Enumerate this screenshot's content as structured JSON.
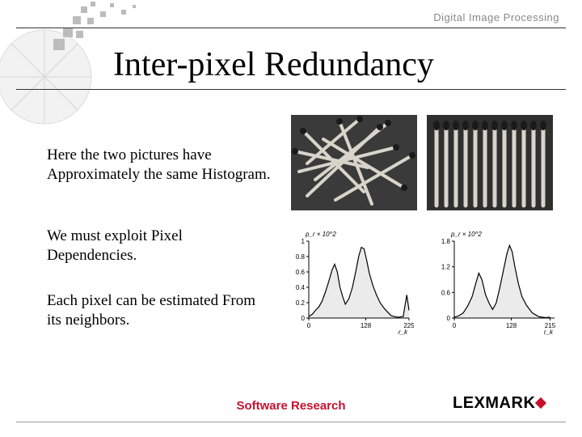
{
  "header": {
    "label": "Digital Image Processing"
  },
  "title": "Inter-pixel Redundancy",
  "paragraphs": {
    "p1": "Here the two pictures have Approximately the same Histogram.",
    "p2": "We must exploit Pixel Dependencies.",
    "p3": "Each pixel can be estimated From its neighbors."
  },
  "footer": {
    "center": "Software Research",
    "logo_text": "LEXMARK",
    "accent_color": "#c8102e"
  },
  "images": {
    "left": {
      "type": "photo",
      "description": "scattered-matches",
      "bg": "#3a3a3a",
      "stick_color": "#d8d4ca",
      "head_color": "#1a1a1a"
    },
    "right": {
      "type": "photo",
      "description": "aligned-matches",
      "bg": "#2f2f2f",
      "stick_color": "#d8d4ca",
      "head_color": "#1a1a1a",
      "count": 12
    }
  },
  "charts": {
    "left": {
      "type": "line",
      "ylabel": "p_r × 10^2",
      "ylim": [
        0,
        1.0
      ],
      "yticks": [
        0,
        0.2,
        0.4,
        0.6,
        0.8,
        1.0
      ],
      "xlim": [
        0,
        225
      ],
      "xticks": [
        0,
        128,
        225
      ],
      "xvar": "r_k",
      "line_color": "#000000",
      "background_color": "#ffffff",
      "data": [
        [
          0,
          0.02
        ],
        [
          8,
          0.05
        ],
        [
          15,
          0.1
        ],
        [
          22,
          0.14
        ],
        [
          30,
          0.22
        ],
        [
          38,
          0.35
        ],
        [
          45,
          0.48
        ],
        [
          52,
          0.62
        ],
        [
          58,
          0.7
        ],
        [
          64,
          0.6
        ],
        [
          70,
          0.4
        ],
        [
          76,
          0.28
        ],
        [
          82,
          0.18
        ],
        [
          90,
          0.25
        ],
        [
          98,
          0.4
        ],
        [
          106,
          0.62
        ],
        [
          112,
          0.8
        ],
        [
          118,
          0.92
        ],
        [
          124,
          0.9
        ],
        [
          130,
          0.75
        ],
        [
          136,
          0.58
        ],
        [
          144,
          0.42
        ],
        [
          152,
          0.3
        ],
        [
          160,
          0.2
        ],
        [
          170,
          0.12
        ],
        [
          185,
          0.03
        ],
        [
          200,
          0.01
        ],
        [
          212,
          0.02
        ],
        [
          220,
          0.3
        ],
        [
          225,
          0.1
        ]
      ]
    },
    "right": {
      "type": "line",
      "ylabel": "p_r × 10^2",
      "ylim": [
        0,
        1.8
      ],
      "yticks": [
        0,
        0.6,
        1.2,
        1.8
      ],
      "xlim": [
        0,
        225
      ],
      "xticks": [
        0,
        128,
        215
      ],
      "xvar": "r_k",
      "line_color": "#000000",
      "background_color": "#ffffff",
      "data": [
        [
          0,
          0.02
        ],
        [
          10,
          0.05
        ],
        [
          20,
          0.12
        ],
        [
          30,
          0.28
        ],
        [
          40,
          0.5
        ],
        [
          48,
          0.8
        ],
        [
          55,
          1.05
        ],
        [
          62,
          0.9
        ],
        [
          70,
          0.55
        ],
        [
          78,
          0.35
        ],
        [
          86,
          0.2
        ],
        [
          94,
          0.35
        ],
        [
          102,
          0.7
        ],
        [
          110,
          1.1
        ],
        [
          118,
          1.5
        ],
        [
          124,
          1.7
        ],
        [
          130,
          1.55
        ],
        [
          136,
          1.2
        ],
        [
          144,
          0.8
        ],
        [
          152,
          0.5
        ],
        [
          162,
          0.3
        ],
        [
          175,
          0.12
        ],
        [
          190,
          0.03
        ],
        [
          205,
          0.01
        ],
        [
          215,
          0.02
        ]
      ]
    }
  },
  "decor": {
    "pixel_color": "#b9b9b9",
    "circle_color": "#e9e9e9"
  }
}
